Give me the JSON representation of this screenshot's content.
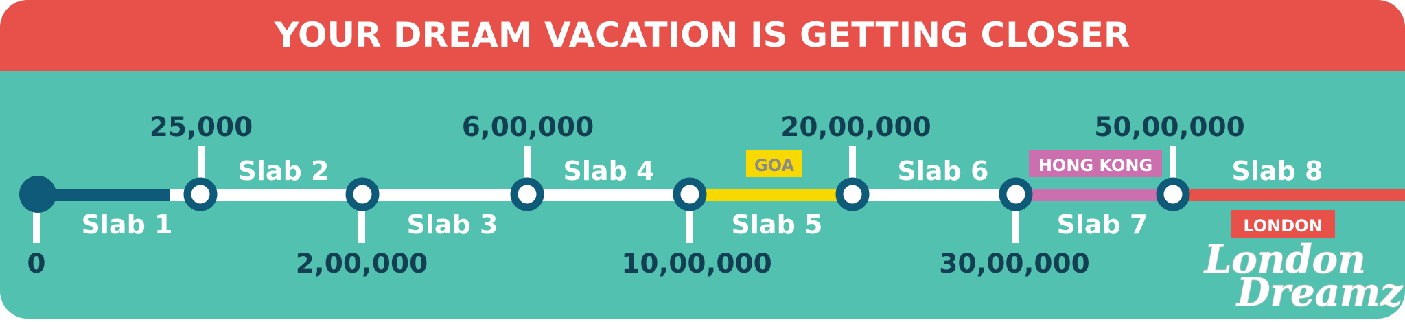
{
  "header": {
    "title": "YOUR DREAM VACATION IS GETTING CLOSER"
  },
  "colors": {
    "header_bg": "#E8514A",
    "panel_bg": "#53C1B0",
    "node": "#0E5A78",
    "track_white": "#FFFFFF",
    "goa": "#F7D900",
    "hong_kong": "#CC6FAF",
    "london": "#E8514A",
    "label_text": "#123F52",
    "slab_text": "#FFFFFF"
  },
  "milestones": [
    {
      "label": "0"
    },
    {
      "label": "25,000"
    },
    {
      "label": "2,00,000"
    },
    {
      "label": "6,00,000"
    },
    {
      "label": "10,00,000"
    },
    {
      "label": "20,00,000"
    },
    {
      "label": "30,00,000"
    },
    {
      "label": "50,00,000"
    }
  ],
  "slabs": [
    {
      "label": "Slab 1"
    },
    {
      "label": "Slab 2"
    },
    {
      "label": "Slab 3"
    },
    {
      "label": "Slab 4"
    },
    {
      "label": "Slab 5"
    },
    {
      "label": "Slab 6"
    },
    {
      "label": "Slab 7"
    },
    {
      "label": "Slab 8"
    }
  ],
  "destinations": [
    {
      "label": "GOA"
    },
    {
      "label": "HONG KONG"
    },
    {
      "label": "LONDON"
    }
  ],
  "logo": {
    "line1": "London",
    "line2": "Dreamz"
  }
}
